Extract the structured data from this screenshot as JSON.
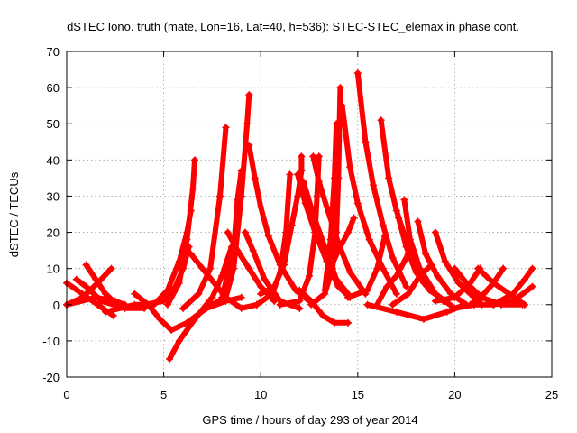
{
  "chart_data": {
    "type": "scatter",
    "title": "dSTEC Iono. truth (mate, Lon=16, Lat=40, h=536): STEC-STEC_elemax in phase cont.",
    "xlabel": "GPS time / hours of day 293 of year 2014",
    "ylabel": "dSTEC  / TECUs",
    "xlim": [
      0,
      25
    ],
    "ylim": [
      -20,
      70
    ],
    "xticks": [
      0,
      5,
      10,
      15,
      20,
      25
    ],
    "yticks": [
      -20,
      -10,
      0,
      10,
      20,
      30,
      40,
      50,
      60,
      70
    ],
    "grid": true,
    "marker": "+",
    "color": "#ff0000",
    "series": [
      {
        "points": [
          [
            0.0,
            6
          ],
          [
            0.8,
            3
          ],
          [
            1.6,
            0
          ],
          [
            2.4,
            -3
          ]
        ]
      },
      {
        "points": [
          [
            0.0,
            0
          ],
          [
            0.8,
            2
          ],
          [
            1.6,
            6
          ],
          [
            2.3,
            10
          ]
        ]
      },
      {
        "points": [
          [
            0.5,
            7
          ],
          [
            1.0,
            5
          ],
          [
            1.8,
            1
          ],
          [
            3.0,
            -1
          ],
          [
            4.0,
            -1
          ]
        ]
      },
      {
        "points": [
          [
            1.0,
            11
          ],
          [
            1.5,
            7
          ],
          [
            2.0,
            3
          ],
          [
            2.6,
            0
          ]
        ]
      },
      {
        "points": [
          [
            0.0,
            0
          ],
          [
            1.5,
            2
          ],
          [
            2.5,
            1
          ],
          [
            3.0,
            0
          ]
        ]
      },
      {
        "points": [
          [
            2.0,
            -2
          ],
          [
            3.5,
            0
          ],
          [
            4.5,
            0
          ],
          [
            5.2,
            4
          ],
          [
            5.8,
            12
          ],
          [
            6.2,
            20
          ],
          [
            6.4,
            26
          ]
        ]
      },
      {
        "points": [
          [
            3.5,
            3
          ],
          [
            4.2,
            0
          ],
          [
            4.8,
            -4
          ],
          [
            5.4,
            -7
          ],
          [
            6.2,
            -5
          ],
          [
            7.2,
            -1
          ],
          [
            8.2,
            1
          ],
          [
            9.0,
            2
          ]
        ]
      },
      {
        "points": [
          [
            4.0,
            0
          ],
          [
            5.0,
            1
          ],
          [
            5.6,
            5
          ],
          [
            6.0,
            10
          ],
          [
            6.3,
            16
          ]
        ]
      },
      {
        "points": [
          [
            5.2,
            0
          ],
          [
            5.8,
            6
          ],
          [
            6.2,
            18
          ],
          [
            6.5,
            32
          ],
          [
            6.6,
            40
          ]
        ]
      },
      {
        "points": [
          [
            5.3,
            -15
          ],
          [
            5.8,
            -10
          ],
          [
            6.6,
            -4
          ],
          [
            7.5,
            2
          ],
          [
            8.0,
            8
          ],
          [
            8.5,
            16
          ]
        ]
      },
      {
        "points": [
          [
            6.0,
            -1
          ],
          [
            6.8,
            3
          ],
          [
            7.4,
            10
          ],
          [
            7.9,
            30
          ],
          [
            8.2,
            49
          ]
        ]
      },
      {
        "points": [
          [
            6.4,
            14
          ],
          [
            7.0,
            10
          ],
          [
            7.6,
            6
          ],
          [
            8.2,
            2
          ],
          [
            9.0,
            -1
          ],
          [
            9.8,
            0
          ]
        ]
      },
      {
        "points": [
          [
            7.5,
            0
          ],
          [
            8.2,
            2
          ],
          [
            8.6,
            10
          ],
          [
            9.0,
            30
          ],
          [
            9.3,
            50
          ],
          [
            9.4,
            58
          ]
        ]
      },
      {
        "points": [
          [
            8.0,
            2
          ],
          [
            8.6,
            15
          ],
          [
            8.8,
            29
          ],
          [
            9.0,
            37
          ]
        ]
      },
      {
        "points": [
          [
            8.3,
            20
          ],
          [
            8.8,
            15
          ],
          [
            9.4,
            10
          ],
          [
            10.0,
            5
          ],
          [
            10.7,
            1
          ]
        ]
      },
      {
        "points": [
          [
            9.4,
            44
          ],
          [
            9.7,
            35
          ],
          [
            10.0,
            27
          ],
          [
            10.4,
            19
          ],
          [
            11.0,
            11
          ],
          [
            11.8,
            4
          ],
          [
            12.5,
            1
          ]
        ]
      },
      {
        "points": [
          [
            9.2,
            20
          ],
          [
            9.6,
            15
          ],
          [
            10.2,
            7
          ],
          [
            11.0,
            1
          ],
          [
            12.0,
            -1
          ]
        ]
      },
      {
        "points": [
          [
            10.0,
            3
          ],
          [
            10.7,
            5
          ],
          [
            11.2,
            11
          ],
          [
            11.6,
            22
          ],
          [
            11.9,
            30
          ],
          [
            12.1,
            37
          ],
          [
            12.1,
            41
          ]
        ]
      },
      {
        "points": [
          [
            9.8,
            0
          ],
          [
            10.6,
            3
          ],
          [
            11.0,
            9
          ],
          [
            11.3,
            20
          ],
          [
            11.5,
            36
          ]
        ]
      },
      {
        "points": [
          [
            11.0,
            0
          ],
          [
            12.0,
            1
          ],
          [
            12.5,
            8
          ],
          [
            12.8,
            20
          ],
          [
            12.9,
            30
          ],
          [
            13.0,
            41
          ]
        ]
      },
      {
        "points": [
          [
            11.9,
            36
          ],
          [
            12.3,
            28
          ],
          [
            12.8,
            20
          ],
          [
            13.4,
            12
          ],
          [
            14.0,
            5
          ],
          [
            14.6,
            2
          ]
        ]
      },
      {
        "points": [
          [
            12.2,
            34
          ],
          [
            12.7,
            25
          ],
          [
            13.3,
            16
          ],
          [
            13.9,
            7
          ],
          [
            14.5,
            3
          ]
        ]
      },
      {
        "points": [
          [
            12.7,
            41
          ],
          [
            13.0,
            34
          ],
          [
            13.4,
            27
          ],
          [
            14.0,
            17
          ],
          [
            14.6,
            9
          ],
          [
            15.4,
            3
          ]
        ]
      },
      {
        "points": [
          [
            12.6,
            0
          ],
          [
            13.3,
            3
          ],
          [
            13.7,
            10
          ],
          [
            13.9,
            20
          ],
          [
            14.0,
            35
          ],
          [
            14.1,
            60
          ]
        ]
      },
      {
        "points": [
          [
            13.3,
            4
          ],
          [
            13.6,
            18
          ],
          [
            13.8,
            35
          ],
          [
            13.9,
            50
          ]
        ]
      },
      {
        "points": [
          [
            12.0,
            4
          ],
          [
            12.6,
            1
          ],
          [
            13.2,
            -3
          ],
          [
            13.8,
            -5
          ],
          [
            14.5,
            -5
          ]
        ]
      },
      {
        "points": [
          [
            14.2,
            55
          ],
          [
            14.6,
            38
          ],
          [
            15.0,
            28
          ],
          [
            15.6,
            18
          ],
          [
            16.3,
            10
          ],
          [
            17.0,
            3
          ]
        ]
      },
      {
        "points": [
          [
            13.5,
            9
          ],
          [
            14.0,
            15
          ],
          [
            14.5,
            20
          ],
          [
            14.8,
            24
          ]
        ]
      },
      {
        "points": [
          [
            15.0,
            64
          ],
          [
            15.4,
            45
          ],
          [
            15.8,
            33
          ],
          [
            16.3,
            22
          ],
          [
            16.8,
            13
          ],
          [
            17.5,
            5
          ]
        ]
      },
      {
        "points": [
          [
            14.5,
            2
          ],
          [
            15.5,
            4
          ],
          [
            16.0,
            10
          ],
          [
            16.4,
            19
          ]
        ]
      },
      {
        "points": [
          [
            16.0,
            0
          ],
          [
            16.5,
            5
          ],
          [
            17.0,
            8
          ],
          [
            17.6,
            14
          ]
        ]
      },
      {
        "points": [
          [
            16.2,
            51
          ],
          [
            16.6,
            35
          ],
          [
            17.0,
            26
          ],
          [
            17.6,
            16
          ],
          [
            18.4,
            6
          ],
          [
            19.4,
            1
          ]
        ]
      },
      {
        "points": [
          [
            16.8,
            0
          ],
          [
            17.6,
            3
          ],
          [
            18.2,
            8
          ],
          [
            18.8,
            11
          ]
        ]
      },
      {
        "points": [
          [
            17.4,
            29
          ],
          [
            17.7,
            18
          ],
          [
            18.2,
            10
          ],
          [
            19.0,
            3
          ],
          [
            20.0,
            -1
          ],
          [
            21.0,
            0
          ]
        ]
      },
      {
        "points": [
          [
            17.1,
            24
          ],
          [
            17.5,
            16
          ],
          [
            18.0,
            9
          ],
          [
            18.7,
            4
          ],
          [
            19.5,
            1
          ]
        ]
      },
      {
        "points": [
          [
            18.1,
            23
          ],
          [
            18.5,
            14
          ],
          [
            19.1,
            8
          ],
          [
            19.8,
            3
          ],
          [
            20.6,
            0
          ]
        ]
      },
      {
        "points": [
          [
            15.5,
            0
          ],
          [
            17.0,
            -2
          ],
          [
            18.4,
            -4
          ],
          [
            19.6,
            -2
          ],
          [
            20.5,
            0
          ]
        ]
      },
      {
        "points": [
          [
            19.0,
            20
          ],
          [
            19.5,
            12
          ],
          [
            20.2,
            6
          ],
          [
            20.8,
            3
          ],
          [
            21.4,
            0
          ]
        ]
      },
      {
        "points": [
          [
            19.0,
            1
          ],
          [
            20.0,
            2
          ],
          [
            20.8,
            6
          ],
          [
            21.3,
            10
          ]
        ]
      },
      {
        "points": [
          [
            20.0,
            10
          ],
          [
            20.6,
            6
          ],
          [
            21.4,
            2
          ],
          [
            22.4,
            0
          ],
          [
            23.5,
            0
          ]
        ]
      },
      {
        "points": [
          [
            20.8,
            0
          ],
          [
            21.5,
            3
          ],
          [
            22.0,
            6
          ],
          [
            22.5,
            10
          ]
        ]
      },
      {
        "points": [
          [
            21.2,
            10
          ],
          [
            22.0,
            6
          ],
          [
            22.8,
            3
          ],
          [
            23.6,
            0
          ]
        ]
      },
      {
        "points": [
          [
            22.0,
            0
          ],
          [
            23.0,
            3
          ],
          [
            23.6,
            7
          ],
          [
            24.0,
            10
          ]
        ]
      },
      {
        "points": [
          [
            21.0,
            0
          ],
          [
            22.0,
            0
          ],
          [
            23.0,
            1
          ],
          [
            24.0,
            5
          ]
        ]
      }
    ]
  }
}
